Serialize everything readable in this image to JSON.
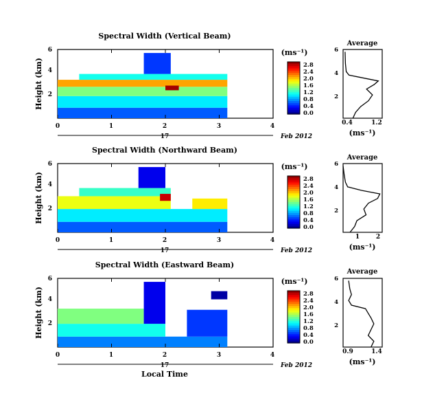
{
  "panels": [
    {
      "title": "Spectral Width (Vertical Beam)",
      "ylabel": "Height (km)",
      "y_ticks": [
        "6",
        "4",
        "2"
      ],
      "x_ticks": [
        "0",
        "1",
        "2",
        "3",
        "4"
      ],
      "day_label": "17",
      "date_label": "Feb 2012",
      "colorbar_unit": "(ms⁻¹)",
      "colorbar_ticks": [
        "2.8",
        "2.4",
        "2.0",
        "1.6",
        "1.2",
        "0.8",
        "0.4",
        "0.0"
      ],
      "avg_title": "Average",
      "avg_y_ticks": [
        "6",
        "4",
        "2"
      ],
      "avg_x_ticks": [
        "0.4",
        "1.2"
      ],
      "avg_unit": "(ms⁻¹)"
    },
    {
      "title": "Spectral Width (Northward Beam)",
      "ylabel": "Height (km)",
      "y_ticks": [
        "6",
        "4",
        "2"
      ],
      "x_ticks": [
        "0",
        "1",
        "2",
        "3",
        "4"
      ],
      "day_label": "17",
      "date_label": "Feb 2012",
      "colorbar_unit": "(ms⁻¹)",
      "colorbar_ticks": [
        "2.8",
        "2.4",
        "2.0",
        "1.6",
        "1.2",
        "0.8",
        "0.4",
        "0.0"
      ],
      "avg_title": "Average",
      "avg_y_ticks": [
        "6",
        "4",
        "2"
      ],
      "avg_x_ticks": [
        "1",
        "2"
      ],
      "avg_unit": "(ms⁻¹)"
    },
    {
      "title": "Spectral Width (Eastward Beam)",
      "ylabel": "Height (km)",
      "y_ticks": [
        "6",
        "4",
        "2"
      ],
      "x_ticks": [
        "0",
        "1",
        "2",
        "3",
        "4"
      ],
      "day_label": "17",
      "date_label": "Feb 2012",
      "colorbar_unit": "(ms⁻¹)",
      "colorbar_ticks": [
        "2.8",
        "2.4",
        "2.0",
        "1.6",
        "1.2",
        "0.8",
        "0.4",
        "0.0"
      ],
      "avg_title": "Average",
      "avg_y_ticks": [
        "6",
        "4",
        "2"
      ],
      "avg_x_ticks": [
        "0.9",
        "1.4"
      ],
      "avg_unit": "(ms⁻¹)"
    }
  ],
  "xlabel": "Local Time",
  "chart_data": [
    {
      "type": "heatmap",
      "title": "Spectral Width (Vertical Beam)",
      "x_range": [
        0,
        4
      ],
      "y_range": [
        0.3,
        6.2
      ],
      "colorbar_range": [
        0.0,
        2.8
      ],
      "regions": [
        {
          "x0": 0,
          "x1": 3.15,
          "y0": 0.3,
          "y1": 1.2,
          "value": 0.6
        },
        {
          "x0": 0,
          "x1": 3.15,
          "y0": 1.2,
          "y1": 2.2,
          "value": 1.0
        },
        {
          "x0": 0,
          "x1": 3.15,
          "y0": 2.2,
          "y1": 3.0,
          "value": 1.4
        },
        {
          "x0": 0,
          "x1": 3.15,
          "y0": 3.0,
          "y1": 3.6,
          "value": 2.0
        },
        {
          "x0": 0.4,
          "x1": 3.15,
          "y0": 3.6,
          "y1": 4.1,
          "value": 1.1
        },
        {
          "x0": 1.6,
          "x1": 2.1,
          "y0": 4.1,
          "y1": 5.9,
          "value": 0.5
        },
        {
          "x0": 2.0,
          "x1": 2.25,
          "y0": 2.7,
          "y1": 3.1,
          "value": 2.7
        }
      ],
      "average_profile": {
        "x_range": [
          0.3,
          1.3
        ],
        "height": [
          0.3,
          0.8,
          1.3,
          1.8,
          2.3,
          2.8,
          3.2,
          3.5,
          3.8,
          4.0,
          4.3,
          5.0,
          6.0
        ],
        "value": [
          0.55,
          0.62,
          0.75,
          0.95,
          1.05,
          0.9,
          1.1,
          1.2,
          0.75,
          0.45,
          0.38,
          0.36,
          0.35
        ]
      }
    },
    {
      "type": "heatmap",
      "title": "Spectral Width (Northward Beam)",
      "x_range": [
        0,
        4
      ],
      "y_range": [
        0.3,
        6.2
      ],
      "colorbar_range": [
        0.0,
        2.8
      ],
      "regions": [
        {
          "x0": 0,
          "x1": 3.15,
          "y0": 0.3,
          "y1": 1.2,
          "value": 0.6
        },
        {
          "x0": 0,
          "x1": 3.15,
          "y0": 1.2,
          "y1": 2.3,
          "value": 1.0
        },
        {
          "x0": 0,
          "x1": 2.1,
          "y0": 2.3,
          "y1": 3.4,
          "value": 1.7
        },
        {
          "x0": 0.4,
          "x1": 2.1,
          "y0": 3.4,
          "y1": 4.1,
          "value": 1.2
        },
        {
          "x0": 1.5,
          "x1": 2.0,
          "y0": 4.1,
          "y1": 5.9,
          "value": 0.3
        },
        {
          "x0": 2.5,
          "x1": 3.15,
          "y0": 2.3,
          "y1": 3.2,
          "value": 1.8
        },
        {
          "x0": 1.9,
          "x1": 2.1,
          "y0": 3.0,
          "y1": 3.6,
          "value": 2.6
        }
      ],
      "average_profile": {
        "x_range": [
          0.5,
          2.2
        ],
        "height": [
          0.3,
          0.8,
          1.3,
          1.8,
          2.3,
          2.8,
          3.2,
          3.6,
          3.9,
          4.2,
          4.6,
          5.2,
          6.0
        ],
        "value": [
          0.8,
          1.0,
          1.1,
          1.5,
          1.4,
          1.6,
          2.0,
          2.1,
          1.3,
          0.7,
          0.6,
          0.55,
          0.5
        ]
      }
    },
    {
      "type": "heatmap",
      "title": "Spectral Width (Eastward Beam)",
      "x_range": [
        0,
        4
      ],
      "y_range": [
        0.3,
        6.2
      ],
      "colorbar_range": [
        0.0,
        2.8
      ],
      "regions": [
        {
          "x0": 0,
          "x1": 3.15,
          "y0": 0.3,
          "y1": 1.2,
          "value": 0.7
        },
        {
          "x0": 0,
          "x1": 2.0,
          "y0": 1.2,
          "y1": 2.3,
          "value": 1.1
        },
        {
          "x0": 0,
          "x1": 1.6,
          "y0": 2.3,
          "y1": 3.6,
          "value": 1.4
        },
        {
          "x0": 1.6,
          "x1": 2.0,
          "y0": 2.3,
          "y1": 5.9,
          "value": 0.3
        },
        {
          "x0": 2.4,
          "x1": 3.15,
          "y0": 1.2,
          "y1": 3.5,
          "value": 0.5
        },
        {
          "x0": 2.85,
          "x1": 3.15,
          "y0": 4.4,
          "y1": 5.1,
          "value": 0.1
        }
      ],
      "average_profile": {
        "x_range": [
          0.8,
          1.5
        ],
        "height": [
          0.3,
          0.8,
          1.3,
          1.8,
          2.3,
          2.8,
          3.2,
          3.6,
          3.9,
          4.3,
          4.8,
          5.3,
          6.0
        ],
        "value": [
          1.3,
          1.35,
          1.25,
          1.3,
          1.35,
          1.3,
          1.25,
          1.2,
          0.95,
          0.9,
          0.95,
          0.92,
          0.9
        ]
      }
    }
  ]
}
